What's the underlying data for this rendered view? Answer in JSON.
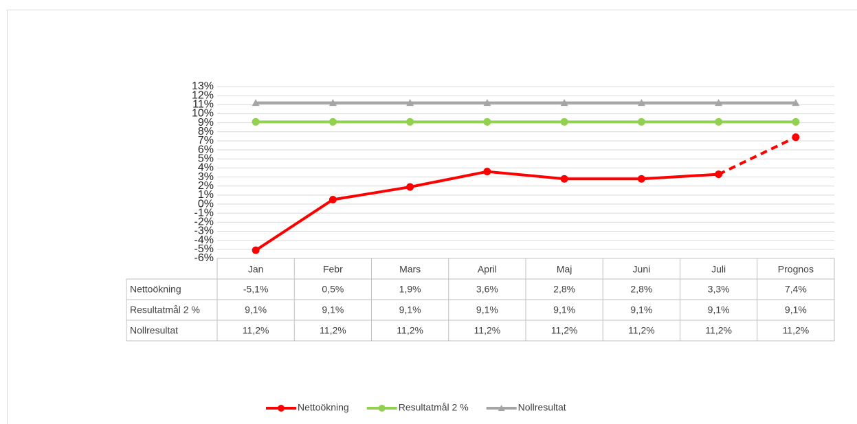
{
  "chart_data": {
    "type": "line",
    "categories": [
      "Jan",
      "Febr",
      "Mars",
      "April",
      "Maj",
      "Juni",
      "Juli",
      "Prognos"
    ],
    "series": [
      {
        "name": "Nettoökning",
        "color": "#ff0000",
        "marker": "circle",
        "dashed_segments": [
          6
        ],
        "values": [
          -5.1,
          0.5,
          1.9,
          3.6,
          2.8,
          2.8,
          3.3,
          7.4
        ],
        "value_labels": [
          "-5,1%",
          "0,5%",
          "1,9%",
          "3,6%",
          "2,8%",
          "2,8%",
          "3,3%",
          "7,4%"
        ]
      },
      {
        "name": "Resultatmål 2 %",
        "color": "#92d050",
        "marker": "circle",
        "values": [
          9.1,
          9.1,
          9.1,
          9.1,
          9.1,
          9.1,
          9.1,
          9.1
        ],
        "value_labels": [
          "9,1%",
          "9,1%",
          "9,1%",
          "9,1%",
          "9,1%",
          "9,1%",
          "9,1%",
          "9,1%"
        ]
      },
      {
        "name": "Nollresultat",
        "color": "#a5a5a5",
        "marker": "triangle",
        "values": [
          11.2,
          11.2,
          11.2,
          11.2,
          11.2,
          11.2,
          11.2,
          11.2
        ],
        "value_labels": [
          "11,2%",
          "11,2%",
          "11,2%",
          "11,2%",
          "11,2%",
          "11,2%",
          "11,2%",
          "11,2%"
        ]
      }
    ],
    "ylim": [
      -6,
      13
    ],
    "yticks": [
      {
        "value": -6,
        "label": "-6%"
      },
      {
        "value": -5,
        "label": "-5%"
      },
      {
        "value": -4,
        "label": "-4%"
      },
      {
        "value": -3,
        "label": "-3%"
      },
      {
        "value": -2,
        "label": "-2%"
      },
      {
        "value": -1,
        "label": "-1%"
      },
      {
        "value": 0,
        "label": "0%"
      },
      {
        "value": 1,
        "label": "1%"
      },
      {
        "value": 2,
        "label": "2%"
      },
      {
        "value": 3,
        "label": "3%"
      },
      {
        "value": 4,
        "label": "4%"
      },
      {
        "value": 5,
        "label": "5%"
      },
      {
        "value": 6,
        "label": "6%"
      },
      {
        "value": 7,
        "label": "7%"
      },
      {
        "value": 8,
        "label": "8%"
      },
      {
        "value": 9,
        "label": "9%"
      },
      {
        "value": 10,
        "label": "10%"
      },
      {
        "value": 11,
        "label": "11%"
      },
      {
        "value": 12,
        "label": "12%"
      },
      {
        "value": 13,
        "label": "13%"
      }
    ],
    "grid": true,
    "legend": "bottom",
    "data_table": true
  }
}
